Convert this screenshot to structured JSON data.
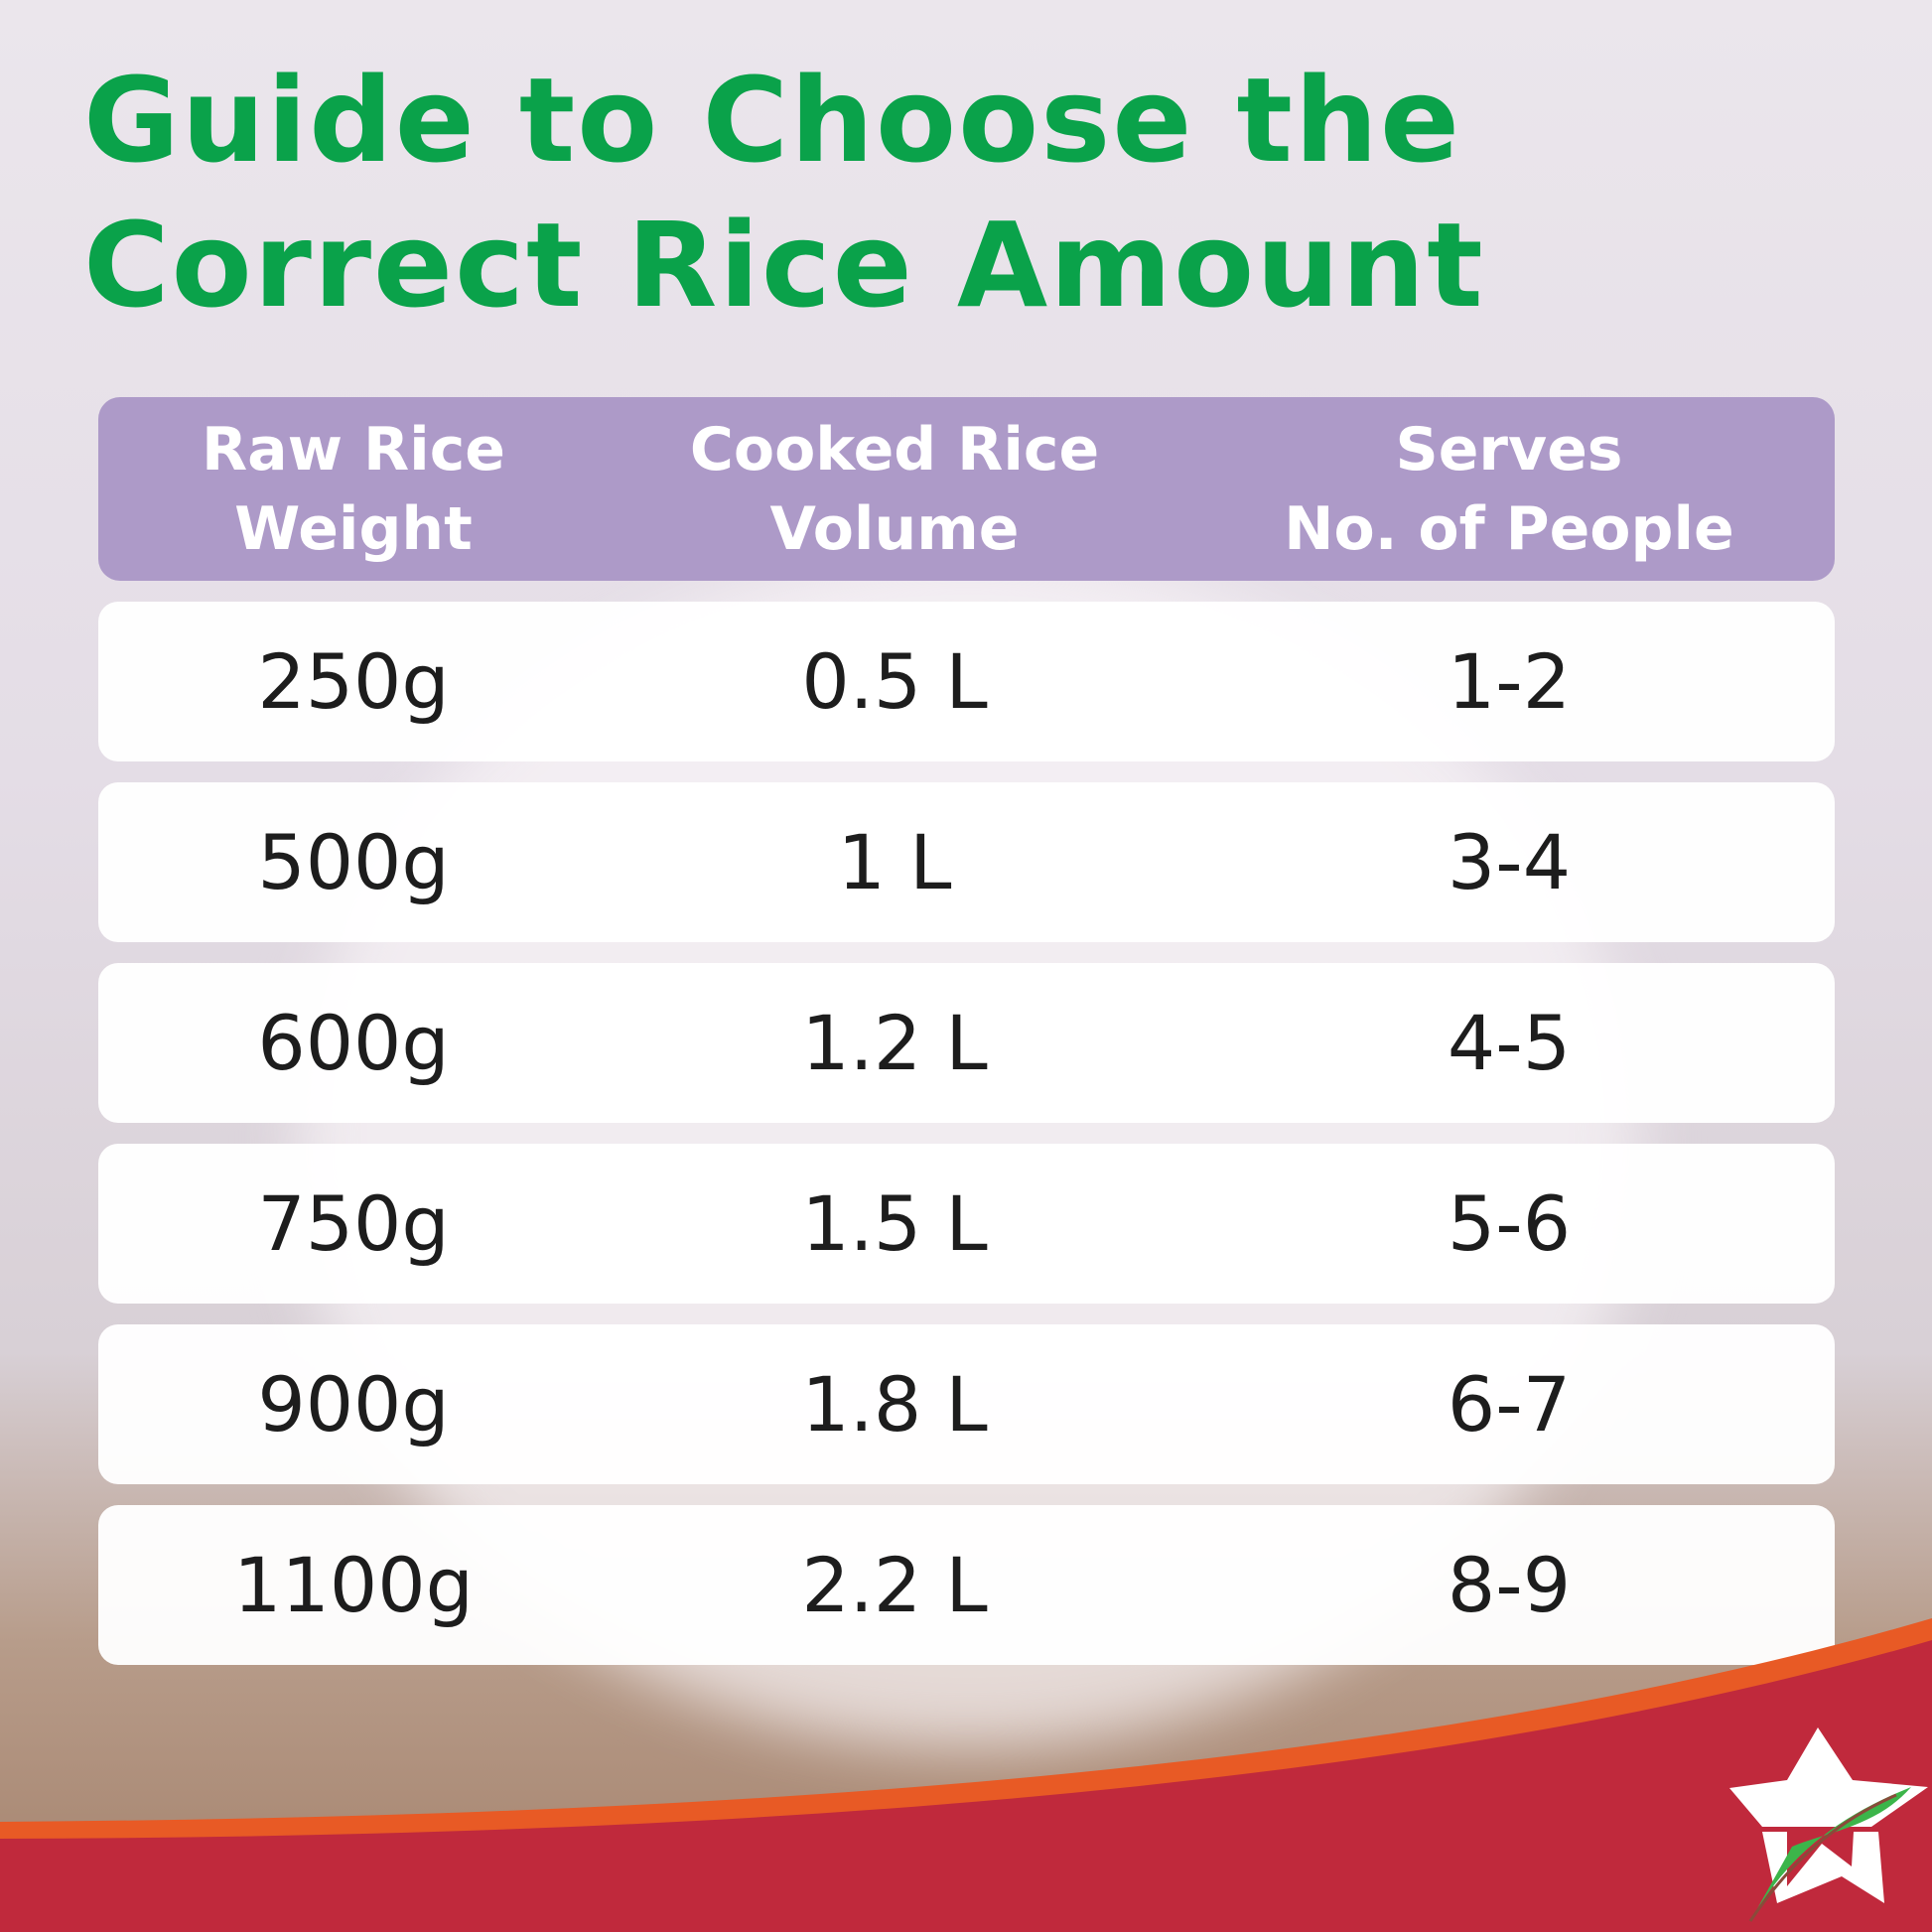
{
  "title": {
    "line1": "Guide to Choose the",
    "line2": "Correct Rice Amount"
  },
  "table": {
    "headers": [
      "Raw Rice\nWeight",
      "Cooked Rice\nVolume",
      "Serves\nNo. of People"
    ],
    "rows": [
      [
        "250g",
        "0.5 L",
        "1-2"
      ],
      [
        "500g",
        "1 L",
        "3-4"
      ],
      [
        "600g",
        "1.2 L",
        "4-5"
      ],
      [
        "750g",
        "1.5 L",
        "5-6"
      ],
      [
        "900g",
        "1.8 L",
        "6-7"
      ],
      [
        "1100g",
        "2.2 L",
        "8-9"
      ]
    ]
  },
  "colors": {
    "title": "#0aa24a",
    "header": "#ad9ac8",
    "banner_red": "#c0293c",
    "banner_orange": "#e85a25",
    "leaf": "#3cb54a"
  },
  "logo": {
    "icon": "star-leaf-logo"
  }
}
